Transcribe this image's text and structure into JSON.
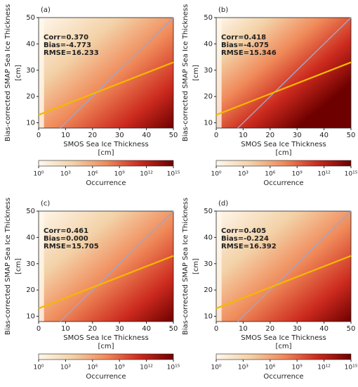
{
  "chart_data": [
    {
      "type": "hist2d",
      "panel_label": "(a)",
      "stats": [
        "Corr=0.370",
        "Bias=-4.773",
        "RMSE=16.233"
      ],
      "xlabel": [
        "SMOS Sea Ice Thickness",
        "[cm]"
      ],
      "ylabel": [
        "Bias-corrected SMAP Sea Ice Thickness",
        "[cm]"
      ],
      "xlim": [
        0,
        50
      ],
      "ylim": [
        8,
        50
      ],
      "xticks": [
        0,
        10,
        20,
        30,
        40,
        50
      ],
      "yticks": [
        10,
        20,
        30,
        40,
        50
      ],
      "lines": [
        {
          "x": [
            0,
            50
          ],
          "y": [
            13,
            33
          ],
          "color": "#f5b800"
        },
        {
          "x": [
            8,
            50
          ],
          "y": [
            8,
            50
          ],
          "color": "#a4a4c4"
        }
      ],
      "colorbar": {
        "label": "Occurrence",
        "log": true,
        "lim": [
          1,
          1000000000000000.0
        ],
        "ticks": [
          {
            "value": 1,
            "label": "10⁰"
          },
          {
            "value": 1000,
            "label": "10³"
          },
          {
            "value": 1000000,
            "label": "10⁶"
          },
          {
            "value": 1000000000,
            "label": "10⁹"
          },
          {
            "value": 1000000000000,
            "label": "10¹²"
          },
          {
            "value": 1000000000000000,
            "label": "10¹⁵"
          }
        ],
        "colors": [
          "#fff7ec",
          "#f3d2a8",
          "#f08a5a",
          "#cc2a1e",
          "#6e0000"
        ]
      }
    },
    {
      "type": "hist2d",
      "panel_label": "(b)",
      "stats": [
        "Corr=0.418",
        "Bias=-4.075",
        "RMSE=15.346"
      ],
      "xlabel": [
        "SMOS Sea Ice Thickness",
        "[cm]"
      ],
      "ylabel": [
        "Bias-corrected SMAP Sea Ice Thickness",
        "[cm]"
      ],
      "xlim": [
        0,
        50
      ],
      "ylim": [
        8,
        50
      ],
      "xticks": [
        0,
        10,
        20,
        30,
        40,
        50
      ],
      "yticks": [
        10,
        20,
        30,
        40,
        50
      ],
      "lines": [
        {
          "x": [
            0,
            50
          ],
          "y": [
            13,
            33
          ],
          "color": "#f5b800"
        },
        {
          "x": [
            8,
            50
          ],
          "y": [
            8,
            50
          ],
          "color": "#a4a4c4"
        }
      ],
      "colorbar": {
        "label": "Occurrence",
        "log": true,
        "lim": [
          1,
          1000000000000000.0
        ],
        "ticks": [
          {
            "value": 1,
            "label": "10⁰"
          },
          {
            "value": 1000,
            "label": "10³"
          },
          {
            "value": 1000000,
            "label": "10⁶"
          },
          {
            "value": 1000000000,
            "label": "10⁹"
          },
          {
            "value": 1000000000000,
            "label": "10¹²"
          },
          {
            "value": 1000000000000000,
            "label": "10¹⁵"
          }
        ],
        "colors": [
          "#fff7ec",
          "#f3d2a8",
          "#f08a5a",
          "#cc2a1e",
          "#6e0000"
        ]
      }
    },
    {
      "type": "hist2d",
      "panel_label": "(c)",
      "stats": [
        "Corr=0.461",
        "Bias=0.000",
        "RMSE=15.705"
      ],
      "xlabel": [
        "SMOS Sea Ice Thickness",
        "[cm]"
      ],
      "ylabel": [
        "Bias-corrected SMAP Sea Ice Thickness",
        "[cm]"
      ],
      "xlim": [
        0,
        50
      ],
      "ylim": [
        8,
        50
      ],
      "xticks": [
        0,
        10,
        20,
        30,
        40,
        50
      ],
      "yticks": [
        10,
        20,
        30,
        40,
        50
      ],
      "lines": [
        {
          "x": [
            0,
            50
          ],
          "y": [
            13,
            33
          ],
          "color": "#f5b800"
        },
        {
          "x": [
            8,
            50
          ],
          "y": [
            8,
            50
          ],
          "color": "#a4a4c4"
        }
      ],
      "colorbar": {
        "label": "Occurrence",
        "log": true,
        "lim": [
          1,
          1000000000000000.0
        ],
        "ticks": [
          {
            "value": 1,
            "label": "10⁰"
          },
          {
            "value": 1000,
            "label": "10³"
          },
          {
            "value": 1000000,
            "label": "10⁶"
          },
          {
            "value": 1000000000,
            "label": "10⁹"
          },
          {
            "value": 1000000000000,
            "label": "10¹²"
          },
          {
            "value": 1000000000000000,
            "label": "10¹⁵"
          }
        ],
        "colors": [
          "#fff7ec",
          "#f3d2a8",
          "#f08a5a",
          "#cc2a1e",
          "#6e0000"
        ]
      }
    },
    {
      "type": "hist2d",
      "panel_label": "(d)",
      "stats": [
        "Corr=0.405",
        "Bias=-0.224",
        "RMSE=16.392"
      ],
      "xlabel": [
        "SMOS Sea Ice Thickness",
        "[cm]"
      ],
      "ylabel": [
        "Bias-corrected SMAP Sea Ice Thickness",
        "[cm]"
      ],
      "xlim": [
        0,
        50
      ],
      "ylim": [
        8,
        50
      ],
      "xticks": [
        0,
        10,
        20,
        30,
        40,
        50
      ],
      "yticks": [
        10,
        20,
        30,
        40,
        50
      ],
      "lines": [
        {
          "x": [
            0,
            50
          ],
          "y": [
            13,
            33
          ],
          "color": "#f5b800"
        },
        {
          "x": [
            8,
            50
          ],
          "y": [
            8,
            50
          ],
          "color": "#a4a4c4"
        }
      ],
      "colorbar": {
        "label": "Occurrence",
        "log": true,
        "lim": [
          1,
          1000000000000000.0
        ],
        "ticks": [
          {
            "value": 1,
            "label": "10⁰"
          },
          {
            "value": 1000,
            "label": "10³"
          },
          {
            "value": 1000000,
            "label": "10⁶"
          },
          {
            "value": 1000000000,
            "label": "10⁹"
          },
          {
            "value": 1000000000000,
            "label": "10¹²"
          },
          {
            "value": 1000000000000000,
            "label": "10¹⁵"
          }
        ],
        "colors": [
          "#fff7ec",
          "#f3d2a8",
          "#f08a5a",
          "#cc2a1e",
          "#6e0000"
        ]
      }
    }
  ]
}
